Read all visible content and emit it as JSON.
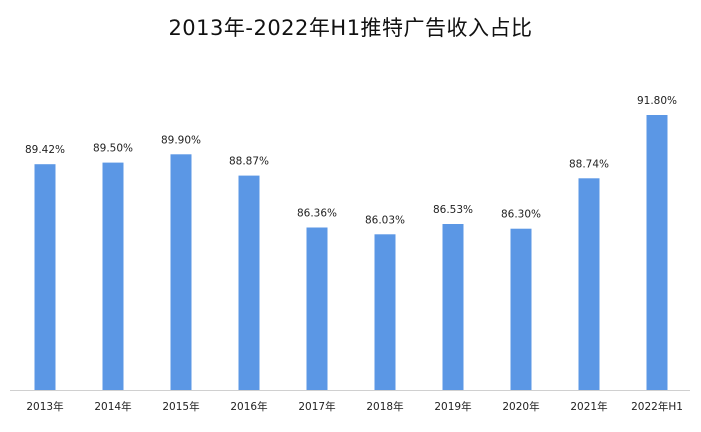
{
  "chart_data": {
    "type": "bar",
    "title": "2013年-2022年H1推特广告收入占比",
    "categories": [
      "2013年",
      "2014年",
      "2015年",
      "2016年",
      "2017年",
      "2018年",
      "2019年",
      "2020年",
      "2021年",
      "2022年H1"
    ],
    "values": [
      89.42,
      89.5,
      89.9,
      88.87,
      86.36,
      86.03,
      86.53,
      86.3,
      88.74,
      91.8
    ],
    "data_labels": [
      "89.42%",
      "89.50%",
      "89.90%",
      "88.87%",
      "86.36%",
      "86.03%",
      "86.53%",
      "86.30%",
      "88.74%",
      "91.80%"
    ],
    "unit": "%",
    "ylim": [
      78.5,
      91.8
    ],
    "grid": false,
    "legend": "none",
    "bar_color": "#5b97e5",
    "axis_color": "#d0d0d0"
  }
}
